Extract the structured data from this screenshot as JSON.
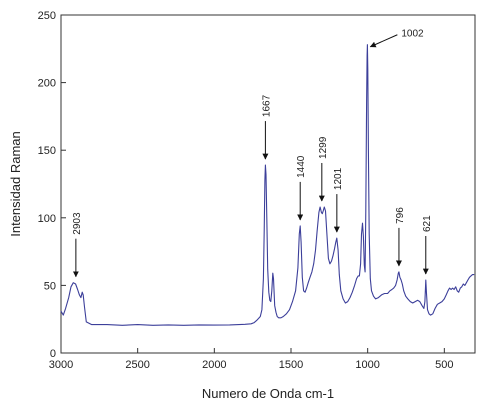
{
  "chart_data": {
    "type": "line",
    "title": "",
    "xlabel": "Numero de Onda cm-1",
    "ylabel": "Intensidad Raman",
    "xlim": [
      3000,
      300
    ],
    "ylim": [
      0,
      250
    ],
    "x_reversed": true,
    "grid": false,
    "legend": "none",
    "xticks": [
      3000,
      2500,
      2000,
      1500,
      1000,
      500
    ],
    "yticks": [
      0,
      50,
      100,
      150,
      200,
      250
    ],
    "line_color": "#3c3f9a",
    "series": [
      {
        "points": [
          [
            3000,
            31
          ],
          [
            2985,
            28
          ],
          [
            2970,
            33
          ],
          [
            2950,
            41
          ],
          [
            2935,
            49
          ],
          [
            2920,
            52
          ],
          [
            2905,
            51
          ],
          [
            2892,
            47
          ],
          [
            2880,
            43
          ],
          [
            2870,
            41
          ],
          [
            2862,
            45
          ],
          [
            2855,
            43
          ],
          [
            2847,
            34
          ],
          [
            2835,
            23
          ],
          [
            2800,
            21
          ],
          [
            2700,
            21
          ],
          [
            2600,
            20.5
          ],
          [
            2500,
            21
          ],
          [
            2400,
            20.5
          ],
          [
            2300,
            20.8
          ],
          [
            2200,
            20.5
          ],
          [
            2100,
            20.8
          ],
          [
            2000,
            20.6
          ],
          [
            1900,
            20.8
          ],
          [
            1800,
            21.2
          ],
          [
            1760,
            21.6
          ],
          [
            1740,
            22.5
          ],
          [
            1725,
            24
          ],
          [
            1712,
            25.5
          ],
          [
            1700,
            27
          ],
          [
            1690,
            32
          ],
          [
            1680,
            55
          ],
          [
            1675,
            90
          ],
          [
            1670,
            128
          ],
          [
            1667,
            139
          ],
          [
            1663,
            132
          ],
          [
            1658,
            100
          ],
          [
            1652,
            62
          ],
          [
            1645,
            45
          ],
          [
            1638,
            39
          ],
          [
            1632,
            38
          ],
          [
            1625,
            46
          ],
          [
            1619,
            59
          ],
          [
            1614,
            55
          ],
          [
            1606,
            35
          ],
          [
            1598,
            30
          ],
          [
            1590,
            27
          ],
          [
            1580,
            26
          ],
          [
            1565,
            26
          ],
          [
            1550,
            27
          ],
          [
            1530,
            29
          ],
          [
            1510,
            32
          ],
          [
            1490,
            38
          ],
          [
            1470,
            46
          ],
          [
            1455,
            63
          ],
          [
            1446,
            88
          ],
          [
            1440,
            94
          ],
          [
            1434,
            82
          ],
          [
            1426,
            56
          ],
          [
            1418,
            46
          ],
          [
            1408,
            45
          ],
          [
            1398,
            48
          ],
          [
            1388,
            52
          ],
          [
            1376,
            56
          ],
          [
            1364,
            60
          ],
          [
            1352,
            66
          ],
          [
            1340,
            76
          ],
          [
            1330,
            90
          ],
          [
            1318,
            104
          ],
          [
            1310,
            108
          ],
          [
            1302,
            104
          ],
          [
            1296,
            103
          ],
          [
            1290,
            105
          ],
          [
            1283,
            108
          ],
          [
            1275,
            105
          ],
          [
            1266,
            88
          ],
          [
            1256,
            70
          ],
          [
            1246,
            66
          ],
          [
            1236,
            68
          ],
          [
            1226,
            72
          ],
          [
            1216,
            77
          ],
          [
            1208,
            82
          ],
          [
            1201,
            85
          ],
          [
            1193,
            76
          ],
          [
            1185,
            58
          ],
          [
            1175,
            46
          ],
          [
            1160,
            40
          ],
          [
            1145,
            37
          ],
          [
            1130,
            38
          ],
          [
            1115,
            41
          ],
          [
            1100,
            45
          ],
          [
            1085,
            50
          ],
          [
            1072,
            55
          ],
          [
            1062,
            57
          ],
          [
            1054,
            57
          ],
          [
            1046,
            66
          ],
          [
            1040,
            88
          ],
          [
            1034,
            96
          ],
          [
            1028,
            86
          ],
          [
            1022,
            65
          ],
          [
            1017,
            60
          ],
          [
            1012,
            105
          ],
          [
            1007,
            185
          ],
          [
            1004,
            220
          ],
          [
            1002,
            228
          ],
          [
            999,
            210
          ],
          [
            995,
            150
          ],
          [
            990,
            88
          ],
          [
            983,
            55
          ],
          [
            975,
            46
          ],
          [
            962,
            42
          ],
          [
            948,
            40
          ],
          [
            930,
            41
          ],
          [
            910,
            43
          ],
          [
            890,
            44
          ],
          [
            870,
            44
          ],
          [
            855,
            46
          ],
          [
            842,
            47
          ],
          [
            830,
            48
          ],
          [
            818,
            50
          ],
          [
            808,
            54
          ],
          [
            800,
            59
          ],
          [
            796,
            60
          ],
          [
            790,
            56
          ],
          [
            782,
            54
          ],
          [
            774,
            51
          ],
          [
            765,
            46
          ],
          [
            752,
            42
          ],
          [
            738,
            40
          ],
          [
            722,
            38
          ],
          [
            706,
            37
          ],
          [
            690,
            38
          ],
          [
            674,
            39
          ],
          [
            660,
            38
          ],
          [
            645,
            35
          ],
          [
            633,
            33
          ],
          [
            627,
            38
          ],
          [
            621,
            54
          ],
          [
            616,
            44
          ],
          [
            610,
            32
          ],
          [
            600,
            29
          ],
          [
            590,
            28
          ],
          [
            575,
            29
          ],
          [
            560,
            33
          ],
          [
            545,
            36
          ],
          [
            530,
            37
          ],
          [
            515,
            38
          ],
          [
            500,
            40
          ],
          [
            488,
            43
          ],
          [
            476,
            46
          ],
          [
            466,
            48
          ],
          [
            456,
            47
          ],
          [
            446,
            48
          ],
          [
            436,
            47
          ],
          [
            426,
            49
          ],
          [
            416,
            46
          ],
          [
            406,
            45
          ],
          [
            396,
            48
          ],
          [
            386,
            49
          ],
          [
            376,
            51
          ],
          [
            366,
            50
          ],
          [
            356,
            52
          ],
          [
            346,
            54
          ],
          [
            336,
            56
          ],
          [
            326,
            57
          ],
          [
            316,
            58
          ],
          [
            305,
            58
          ]
        ]
      }
    ],
    "annotations": [
      {
        "label": "2903",
        "x": 2903,
        "y": 52,
        "orientation": "vertical"
      },
      {
        "label": "1667",
        "x": 1667,
        "y": 139,
        "orientation": "vertical"
      },
      {
        "label": "1440",
        "x": 1440,
        "y": 94,
        "orientation": "vertical"
      },
      {
        "label": "1299",
        "x": 1299,
        "y": 108,
        "orientation": "vertical"
      },
      {
        "label": "1201",
        "x": 1201,
        "y": 85,
        "orientation": "vertical"
      },
      {
        "label": "1002",
        "x": 1002,
        "y": 228,
        "orientation": "horizontal"
      },
      {
        "label": "796",
        "x": 796,
        "y": 60,
        "orientation": "vertical"
      },
      {
        "label": "621",
        "x": 621,
        "y": 54,
        "orientation": "vertical"
      }
    ]
  }
}
